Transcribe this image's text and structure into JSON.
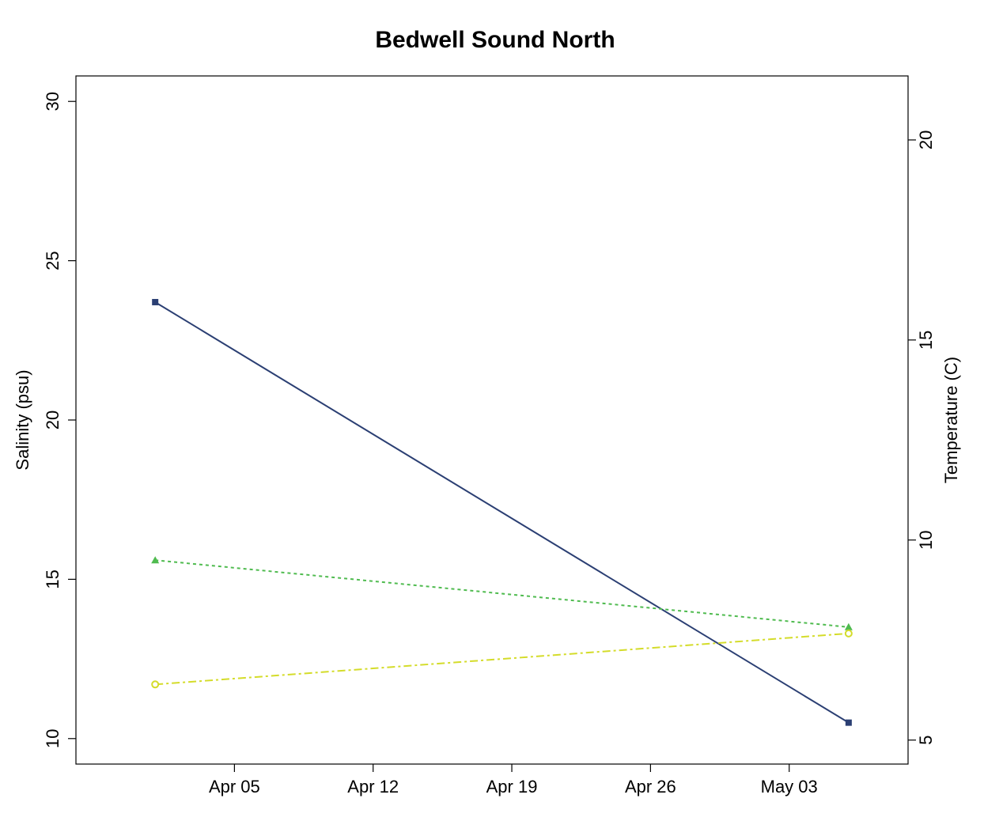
{
  "chart_data": {
    "type": "line",
    "title": "Bedwell Sound North",
    "xlabel": "",
    "ylabel": "Salinity (psu)",
    "y2label": "Temperature (C)",
    "x_dates": [
      "2024-04-01",
      "2024-05-06"
    ],
    "xticks": [
      {
        "date": "2024-04-05",
        "label": "Apr 05"
      },
      {
        "date": "2024-04-12",
        "label": "Apr 12"
      },
      {
        "date": "2024-04-19",
        "label": "Apr 19"
      },
      {
        "date": "2024-04-26",
        "label": "Apr 26"
      },
      {
        "date": "2024-05-03",
        "label": "May 03"
      }
    ],
    "xlim": [
      "2024-03-28",
      "2024-05-09"
    ],
    "ylim": [
      9.2,
      30.8
    ],
    "yticks": [
      10,
      15,
      20,
      25,
      30
    ],
    "y2lim": [
      4.4,
      21.6
    ],
    "y2ticks": [
      5,
      10,
      15,
      20
    ],
    "grid": false,
    "series": [
      {
        "axis": "left",
        "color": "#2b3f73",
        "marker": "square",
        "dash": "",
        "values": [
          23.7,
          10.5
        ]
      },
      {
        "axis": "left",
        "color": "#4fbb4f",
        "marker": "triangle",
        "dash": "4,4",
        "values": [
          15.6,
          13.5
        ]
      },
      {
        "axis": "left",
        "color": "#d4dc2a",
        "marker": "circle",
        "dash": "10,4,3,4",
        "values": [
          11.7,
          13.3
        ]
      }
    ]
  }
}
